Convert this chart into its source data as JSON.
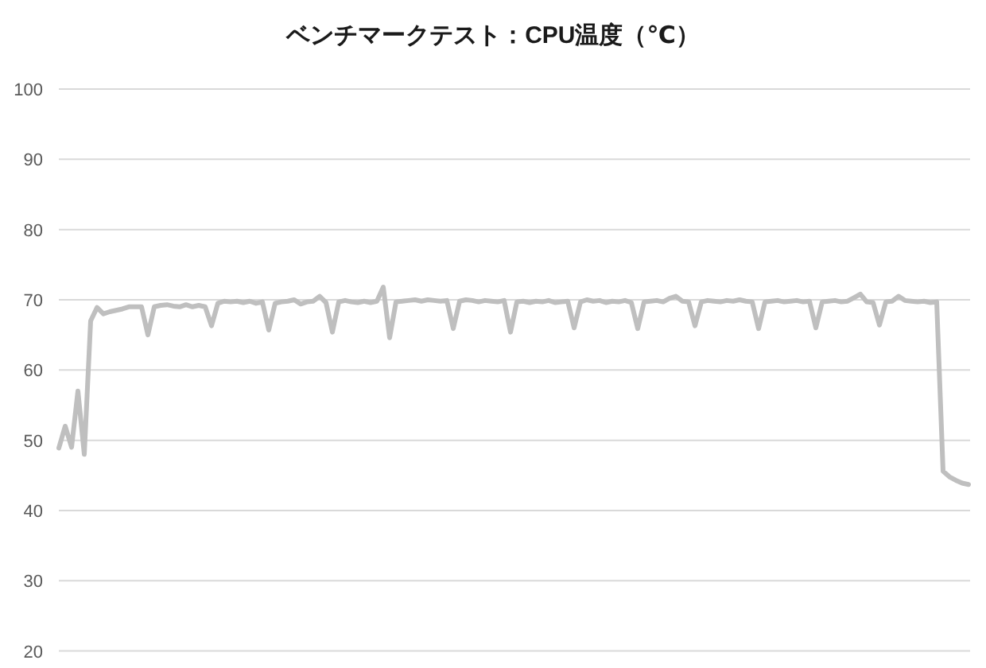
{
  "chart_data": {
    "type": "line",
    "title": "ベンチマークテスト：CPU温度（℃）",
    "categories": [
      null,
      null,
      null,
      null,
      null,
      null,
      null,
      null,
      null,
      null,
      null,
      null,
      null,
      null,
      null,
      null,
      null,
      null,
      null,
      null,
      null,
      null,
      null,
      null,
      null,
      null,
      null,
      null,
      null,
      null,
      null,
      null,
      null,
      null,
      null,
      null,
      null,
      null,
      null,
      null,
      null,
      null,
      null,
      null,
      null,
      null,
      null,
      null,
      null,
      null,
      null,
      null,
      null,
      null,
      null,
      null,
      null,
      null,
      null,
      null,
      null,
      null,
      null,
      null,
      null,
      null,
      null,
      null,
      null,
      null,
      null,
      null,
      null,
      null,
      null,
      null,
      null,
      null,
      null,
      null,
      null,
      null,
      null,
      null,
      null,
      null,
      null,
      null,
      null,
      null,
      null,
      null,
      null,
      null,
      null,
      null,
      null,
      null,
      null,
      null,
      null,
      null,
      null,
      null,
      null,
      null,
      null,
      null,
      null,
      null,
      null,
      null,
      null,
      null,
      null,
      null,
      null,
      null,
      null,
      null,
      null,
      null,
      null,
      null,
      null,
      null,
      null,
      null,
      null,
      null,
      null,
      null,
      null,
      null,
      null,
      null,
      null,
      null,
      null,
      null,
      null,
      null,
      null,
      null
    ],
    "series": [
      {
        "color": "#bfbfbf",
        "values": [
          48.9,
          52,
          49,
          57,
          48,
          67,
          68.9,
          68,
          68.3,
          68.5,
          68.7,
          69,
          69,
          69,
          65,
          69,
          69.2,
          69.3,
          69.1,
          69,
          69.3,
          69,
          69.2,
          69,
          66.3,
          69.5,
          69.8,
          69.7,
          69.8,
          69.6,
          69.8,
          69.5,
          69.7,
          65.7,
          69.5,
          69.7,
          69.8,
          70,
          69.4,
          69.7,
          69.8,
          70.5,
          69.6,
          65.4,
          69.7,
          69.9,
          69.7,
          69.6,
          69.8,
          69.6,
          69.8,
          71.8,
          64.6,
          69.7,
          69.8,
          69.9,
          70,
          69.8,
          70,
          69.9,
          69.8,
          69.9,
          65.9,
          69.8,
          70,
          69.9,
          69.7,
          69.9,
          69.8,
          69.7,
          69.9,
          65.4,
          69.7,
          69.8,
          69.6,
          69.8,
          69.7,
          69.9,
          69.6,
          69.7,
          69.8,
          66,
          69.7,
          70,
          69.8,
          69.9,
          69.6,
          69.8,
          69.7,
          69.9,
          69.6,
          65.9,
          69.7,
          69.8,
          69.9,
          69.7,
          70.2,
          70.5,
          69.8,
          69.7,
          66.3,
          69.7,
          69.9,
          69.8,
          69.7,
          69.9,
          69.8,
          70,
          69.8,
          69.7,
          65.9,
          69.7,
          69.8,
          69.9,
          69.7,
          69.8,
          69.9,
          69.7,
          69.8,
          66,
          69.7,
          69.8,
          69.9,
          69.7,
          69.8,
          70.3,
          70.8,
          69.7,
          69.6,
          66.4,
          69.7,
          69.8,
          70.5,
          69.9,
          69.8,
          69.7,
          69.8,
          69.6,
          69.7,
          45.6,
          44.8,
          44.3,
          43.9,
          43.7
        ]
      }
    ],
    "ylim": [
      20,
      100
    ],
    "yticks": [
      20,
      30,
      40,
      50,
      60,
      70,
      80,
      90,
      100
    ],
    "grid": "y",
    "tick_labels": "y"
  }
}
